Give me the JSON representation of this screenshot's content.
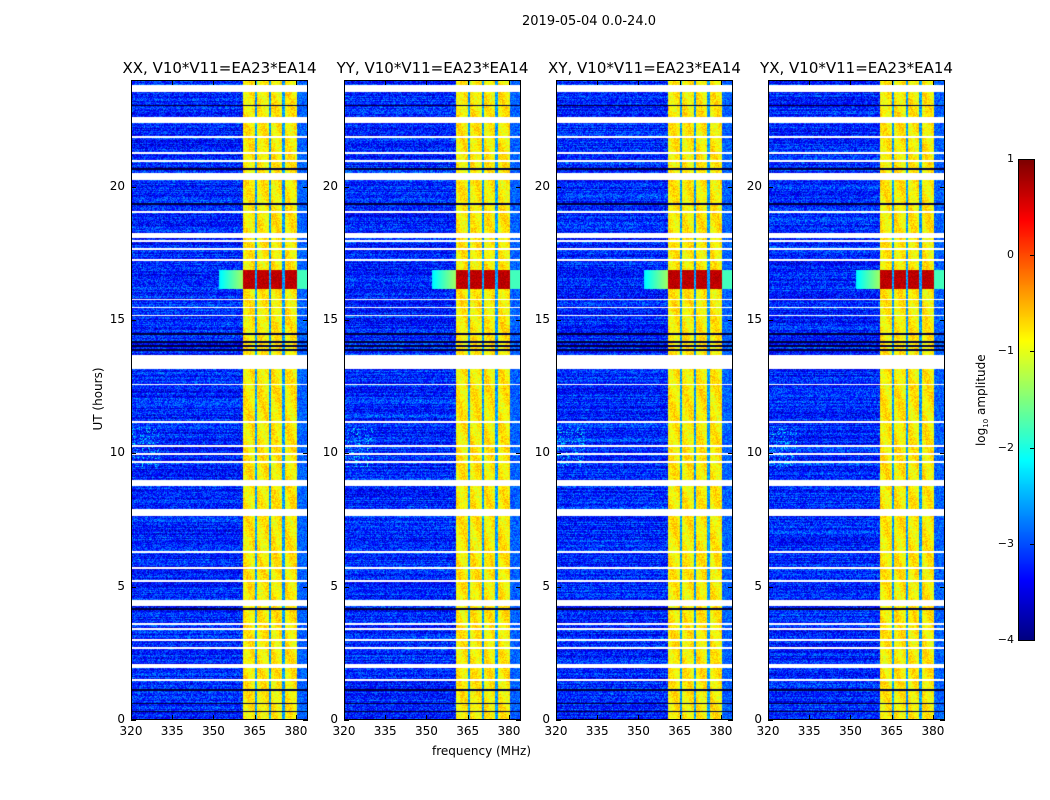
{
  "figure": {
    "suptitle": "2019-05-04 0.0-24.0",
    "xlabel": "frequency (MHz)",
    "ylabel": "UT (hours)",
    "colorbar_label_prefix": "log",
    "colorbar_label_sub": "10",
    "colorbar_label_suffix": " amplitude"
  },
  "chart_data": {
    "type": "heatmap",
    "colormap": "jet",
    "panels": [
      {
        "title": "XX, V10*V11=EA23*EA14",
        "polarization": "XX"
      },
      {
        "title": "YY, V10*V11=EA23*EA14",
        "polarization": "YY"
      },
      {
        "title": "XY, V10*V11=EA23*EA14",
        "polarization": "XY"
      },
      {
        "title": "YX, V10*V11=EA23*EA14",
        "polarization": "YX"
      }
    ],
    "xlim": [
      320,
      384.4
    ],
    "ylim": [
      0,
      24
    ],
    "xticks": [
      "320",
      "335",
      "350",
      "365",
      "380"
    ],
    "xtick_values": [
      320,
      335,
      350,
      365,
      380
    ],
    "yticks": [
      "0",
      "5",
      "10",
      "15",
      "20"
    ],
    "ytick_values": [
      0,
      5,
      10,
      15,
      20
    ],
    "colorbar": {
      "range": [
        -4,
        1
      ],
      "ticks": [
        "−4",
        "−3",
        "−2",
        "−1",
        "0",
        "1"
      ],
      "tick_values": [
        -4,
        -3,
        -2,
        -1,
        0,
        1
      ]
    },
    "background_level": -3.2,
    "rfi_band_mhz": [
      360.7,
      380.4
    ],
    "rfi_band_level": -0.8,
    "rfi_band_gaps_mhz": [
      365.5,
      370.5,
      375.5
    ],
    "outer_gap_mhz": [
      380.4,
      384.4
    ],
    "burst_hours": [
      16.2,
      16.9
    ],
    "burst_level": 0.7,
    "flagged_hours": [
      [
        23.6,
        23.85
      ],
      [
        22.45,
        22.65
      ],
      [
        20.3,
        20.55
      ],
      [
        18.1,
        18.3
      ],
      [
        13.2,
        13.7
      ],
      [
        8.8,
        9.0
      ],
      [
        7.65,
        7.9
      ],
      [
        4.27,
        4.5
      ],
      [
        1.95,
        2.1
      ]
    ],
    "thin_flag_hours": [
      21.9,
      21.3,
      21.0,
      19.1,
      18.0,
      17.7,
      17.3,
      15.8,
      15.5,
      15.2,
      12.6,
      11.2,
      10.3,
      10.0,
      9.7,
      6.3,
      5.7,
      5.2,
      3.6,
      3.4,
      3.0,
      2.7,
      1.5
    ],
    "dark_line_hours": [
      23.1,
      20.7,
      19.4,
      14.5,
      14.2,
      14.05,
      13.9,
      4.15,
      1.1,
      0.6,
      0.3
    ]
  }
}
